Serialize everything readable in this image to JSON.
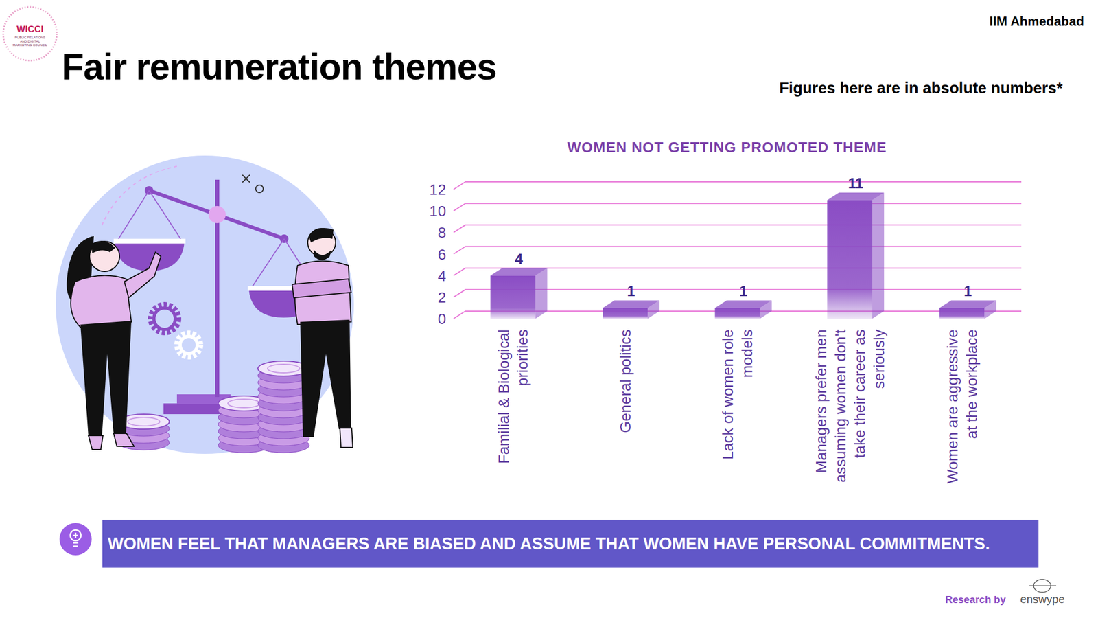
{
  "chart_data": {
    "type": "bar",
    "title": "WOMEN NOT GETTING PROMOTED THEME",
    "categories": [
      "Familial & Biological priorities",
      "General politics",
      "Lack of women role models",
      "Managers prefer men assuming women don't take their career as seriously",
      "Women are aggressive at the workplace"
    ],
    "values": [
      4,
      1,
      1,
      11,
      1
    ],
    "color": "#8a4cc4",
    "ylim": [
      0,
      12
    ],
    "yticks": [
      0,
      2,
      4,
      6,
      8,
      10,
      12
    ],
    "grid": true,
    "data_labels": true
  },
  "slide": {
    "title": "Fair remuneration themes",
    "org": "IIM Ahmedabad",
    "note": "Figures here are in absolute numbers*",
    "banner": "WOMEN FEEL THAT MANAGERS ARE BIASED AND ASSUME THAT WOMEN HAVE PERSONAL COMMITMENTS.",
    "credit": "Research by",
    "brand": "enswype",
    "logo": "WICCI",
    "logo_sub": "PUBLIC RELATIONS AND DIGITAL MARKETING COUNCIL"
  }
}
